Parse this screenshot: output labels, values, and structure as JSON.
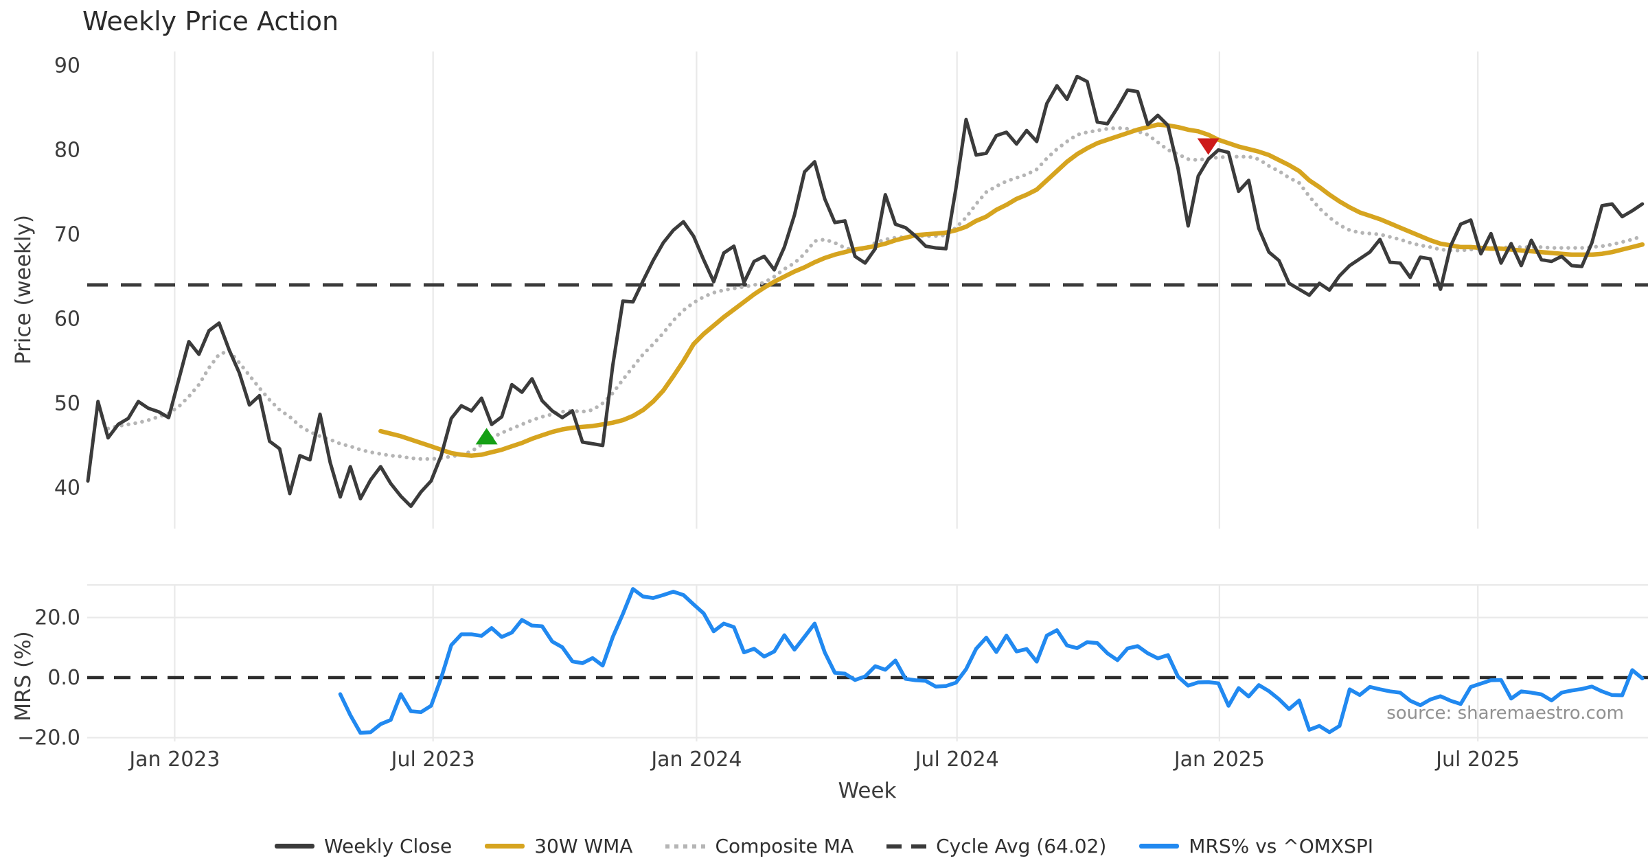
{
  "title": "Weekly Price Action",
  "source_note": "source: sharemaestro.com",
  "colors": {
    "weekly_close": "#3b3b3b",
    "wma_30": "#d6a41f",
    "composite_ma": "#b5b5b5",
    "cycle_avg": "#3a3a3a",
    "mrs": "#2189f0",
    "grid": "#e9e9e9",
    "buy_marker": "#16a016",
    "sell_marker": "#cd1a1a"
  },
  "legend": [
    {
      "label": "Weekly Close",
      "style": "solid",
      "color_key": "weekly_close"
    },
    {
      "label": "30W WMA",
      "style": "solid",
      "color_key": "wma_30"
    },
    {
      "label": "Composite MA",
      "style": "dotted",
      "color_key": "composite_ma"
    },
    {
      "label": "Cycle Avg (64.02)",
      "style": "dashed",
      "color_key": "cycle_avg"
    },
    {
      "label": "MRS% vs ^OMXSPI",
      "style": "solid",
      "color_key": "mrs"
    }
  ],
  "chart_data": [
    {
      "type": "line",
      "panel": "price",
      "ylabel": "Price (weekly)",
      "ylim": [
        35.2,
        91.7
      ],
      "yticks": [
        40,
        50,
        60,
        70,
        80,
        90
      ],
      "grid": "vertical-only",
      "cycle_avg": 64.02,
      "xticks": [
        {
          "week": 8.6,
          "label": "Jan 2023"
        },
        {
          "week": 34.2,
          "label": "Jul 2023"
        },
        {
          "week": 60.3,
          "label": "Jan 2024"
        },
        {
          "week": 86.1,
          "label": "Jul 2024"
        },
        {
          "week": 112.1,
          "label": "Jan 2025"
        },
        {
          "week": 137.7,
          "label": "Jul 2025"
        }
      ],
      "series": [
        {
          "name": "Weekly Close",
          "color_key": "weekly_close",
          "start_week": 0,
          "values": [
            40.8,
            50.2,
            45.9,
            47.5,
            48.2,
            50.2,
            49.4,
            49.0,
            48.3,
            52.8,
            57.3,
            55.8,
            58.6,
            59.5,
            56.3,
            53.6,
            49.8,
            50.9,
            45.5,
            44.6,
            39.3,
            43.8,
            43.3,
            48.7,
            43.0,
            38.9,
            42.5,
            38.7,
            40.9,
            42.5,
            40.5,
            39.0,
            37.8,
            39.5,
            40.8,
            43.8,
            48.2,
            49.7,
            49.1,
            50.6,
            47.5,
            48.4,
            52.2,
            51.3,
            52.9,
            50.3,
            49.1,
            48.3,
            49.1,
            45.4,
            45.2,
            45.0,
            54.5,
            62.1,
            62.0,
            64.5,
            66.9,
            69.0,
            70.5,
            71.5,
            69.8,
            67.0,
            64.4,
            67.8,
            68.6,
            64.3,
            66.8,
            67.4,
            65.8,
            68.5,
            72.3,
            77.4,
            78.6,
            74.2,
            71.4,
            71.6,
            67.4,
            66.6,
            68.3,
            74.7,
            71.2,
            70.8,
            69.8,
            68.6,
            68.4,
            68.3,
            75.5,
            83.6,
            79.4,
            79.6,
            81.7,
            82.1,
            80.7,
            82.3,
            81.0,
            85.5,
            87.6,
            86.0,
            88.7,
            88.1,
            83.3,
            83.1,
            85.0,
            87.1,
            86.9,
            83.0,
            84.1,
            82.9,
            77.8,
            71.0,
            76.9,
            78.9,
            80.0,
            79.7,
            75.1,
            76.4,
            70.7,
            67.9,
            66.9,
            64.2,
            63.5,
            62.8,
            64.2,
            63.4,
            65.1,
            66.3,
            67.1,
            67.9,
            69.4,
            66.7,
            66.6,
            64.9,
            67.3,
            67.1,
            63.5,
            68.6,
            71.2,
            71.7,
            67.7,
            70.1,
            66.6,
            68.9,
            66.3,
            69.3,
            67.0,
            66.8,
            67.4,
            66.3,
            66.2,
            69.0,
            73.4,
            73.6,
            72.1,
            72.8,
            73.6
          ]
        },
        {
          "name": "30W WMA",
          "color_key": "wma_30",
          "start_week": 29,
          "values": [
            46.7,
            46.4,
            46.1,
            45.7,
            45.3,
            44.9,
            44.5,
            44.1,
            43.9,
            43.8,
            43.9,
            44.2,
            44.5,
            44.9,
            45.3,
            45.8,
            46.2,
            46.6,
            46.9,
            47.1,
            47.2,
            47.3,
            47.5,
            47.7,
            48.0,
            48.5,
            49.2,
            50.2,
            51.5,
            53.2,
            55.0,
            57.0,
            58.2,
            59.2,
            60.2,
            61.1,
            62.0,
            62.9,
            63.7,
            64.4,
            65.0,
            65.6,
            66.1,
            66.7,
            67.2,
            67.6,
            67.9,
            68.2,
            68.4,
            68.6,
            68.9,
            69.3,
            69.6,
            69.9,
            70.0,
            70.1,
            70.2,
            70.5,
            70.9,
            71.6,
            72.1,
            72.9,
            73.5,
            74.2,
            74.7,
            75.3,
            76.4,
            77.5,
            78.6,
            79.5,
            80.2,
            80.8,
            81.2,
            81.6,
            82.0,
            82.4,
            82.7,
            83.0,
            82.9,
            82.7,
            82.4,
            82.2,
            81.8,
            81.2,
            80.8,
            80.4,
            80.1,
            79.8,
            79.4,
            78.8,
            78.2,
            77.5,
            76.4,
            75.6,
            74.7,
            73.9,
            73.2,
            72.6,
            72.2,
            71.8,
            71.3,
            70.8,
            70.3,
            69.8,
            69.3,
            68.9,
            68.7,
            68.5,
            68.5,
            68.4,
            68.3,
            68.3,
            68.2,
            68.1,
            68.0,
            67.9,
            67.8,
            67.7,
            67.6,
            67.6,
            67.6,
            67.7,
            67.9,
            68.2,
            68.5,
            68.8
          ]
        },
        {
          "name": "Composite MA",
          "color_key": "composite_ma",
          "start_week": 2,
          "values": [
            47.0,
            47.3,
            47.5,
            47.7,
            48.0,
            48.4,
            48.8,
            49.6,
            50.8,
            52.2,
            54.2,
            55.8,
            56.2,
            54.8,
            53.3,
            51.8,
            50.4,
            49.2,
            48.4,
            47.3,
            46.6,
            46.1,
            45.7,
            45.2,
            44.9,
            44.5,
            44.2,
            44.0,
            43.8,
            43.7,
            43.5,
            43.4,
            43.4,
            43.5,
            43.7,
            43.9,
            44.3,
            45.1,
            45.9,
            46.5,
            47.0,
            47.5,
            48.0,
            48.4,
            48.7,
            49.0,
            49.1,
            49.0,
            49.2,
            50.0,
            51.2,
            52.8,
            54.3,
            55.8,
            57.0,
            58.3,
            59.8,
            61.0,
            61.9,
            62.6,
            63.1,
            63.4,
            63.6,
            63.8,
            64.0,
            64.3,
            65.0,
            65.9,
            66.6,
            67.7,
            69.2,
            69.4,
            69.0,
            68.4,
            68.1,
            68.3,
            69.0,
            69.4,
            69.6,
            69.7,
            69.8,
            69.8,
            69.8,
            69.9,
            70.8,
            72.0,
            73.6,
            75.0,
            75.7,
            76.3,
            76.7,
            77.1,
            77.7,
            79.0,
            80.1,
            81.0,
            81.8,
            82.1,
            82.3,
            82.5,
            82.6,
            82.5,
            82.2,
            81.8,
            80.9,
            80.0,
            79.5,
            78.9,
            78.8,
            79.0,
            79.1,
            79.2,
            79.2,
            79.2,
            78.9,
            78.1,
            77.5,
            76.7,
            76.1,
            74.5,
            73.1,
            72.0,
            71.1,
            70.5,
            70.2,
            70.1,
            70.0,
            69.7,
            69.4,
            69.0,
            68.7,
            68.5,
            68.2,
            68.1,
            68.1,
            68.2,
            68.3,
            68.4,
            68.4,
            68.5,
            68.5,
            68.5,
            68.5,
            68.4,
            68.4,
            68.4,
            68.4,
            68.5,
            68.6,
            68.8,
            69.1,
            69.4,
            69.8
          ]
        }
      ],
      "markers": [
        {
          "shape": "triangle-up",
          "color_key": "buy_marker",
          "week": 39.5,
          "value": 46.1
        },
        {
          "shape": "triangle-down",
          "color_key": "sell_marker",
          "week": 111.0,
          "value": 80.4
        }
      ]
    },
    {
      "type": "line",
      "panel": "mrs",
      "ylabel": "MRS (%)",
      "xlabel": "Week",
      "ylim": [
        -21.3,
        30.9
      ],
      "yticks": [
        {
          "v": 20,
          "label": "20.0"
        },
        {
          "v": 0,
          "label": "0.0"
        },
        {
          "v": -20,
          "label": "−20.0"
        }
      ],
      "zero_line": 0.0,
      "series": [
        {
          "name": "MRS% vs ^OMXSPI",
          "color_key": "mrs",
          "start_week": 25,
          "values": [
            -5.5,
            -12.5,
            -18.4,
            -18.2,
            -15.5,
            -14.1,
            -5.5,
            -11.2,
            -11.5,
            -9.4,
            -0.1,
            10.8,
            14.4,
            14.4,
            13.9,
            16.5,
            13.5,
            15.0,
            19.2,
            17.3,
            17.1,
            12.0,
            10.1,
            5.4,
            4.8,
            6.5,
            4.0,
            13.5,
            21.2,
            29.5,
            27.0,
            26.5,
            27.5,
            28.6,
            27.5,
            24.4,
            21.4,
            15.4,
            18.0,
            16.8,
            8.4,
            9.6,
            7.0,
            8.7,
            14.1,
            9.3,
            13.6,
            18.0,
            8.4,
            1.6,
            1.3,
            -0.8,
            0.4,
            3.8,
            2.6,
            5.7,
            -0.4,
            -0.9,
            -1.1,
            -3.0,
            -2.8,
            -1.7,
            2.8,
            9.6,
            13.3,
            8.5,
            14.0,
            8.7,
            9.5,
            5.3,
            14.0,
            15.8,
            10.7,
            9.8,
            11.8,
            11.5,
            8.1,
            5.8,
            9.7,
            10.5,
            8.1,
            6.4,
            7.5,
            0.3,
            -2.7,
            -1.6,
            -1.5,
            -1.9,
            -9.4,
            -3.5,
            -6.3,
            -2.5,
            -4.5,
            -7.2,
            -10.5,
            -7.6,
            -17.4,
            -16.1,
            -18.2,
            -16.1,
            -3.9,
            -5.8,
            -3.1,
            -3.9,
            -4.6,
            -5.0,
            -7.7,
            -9.2,
            -7.3,
            -6.2,
            -7.7,
            -8.8,
            -3.1,
            -2.0,
            -0.9,
            -0.8,
            -7.0,
            -4.6,
            -5.0,
            -5.6,
            -7.6,
            -5.0,
            -4.3,
            -3.8,
            -3.0,
            -4.6,
            -5.8,
            -5.9,
            2.5,
            -0.3
          ]
        }
      ]
    }
  ]
}
